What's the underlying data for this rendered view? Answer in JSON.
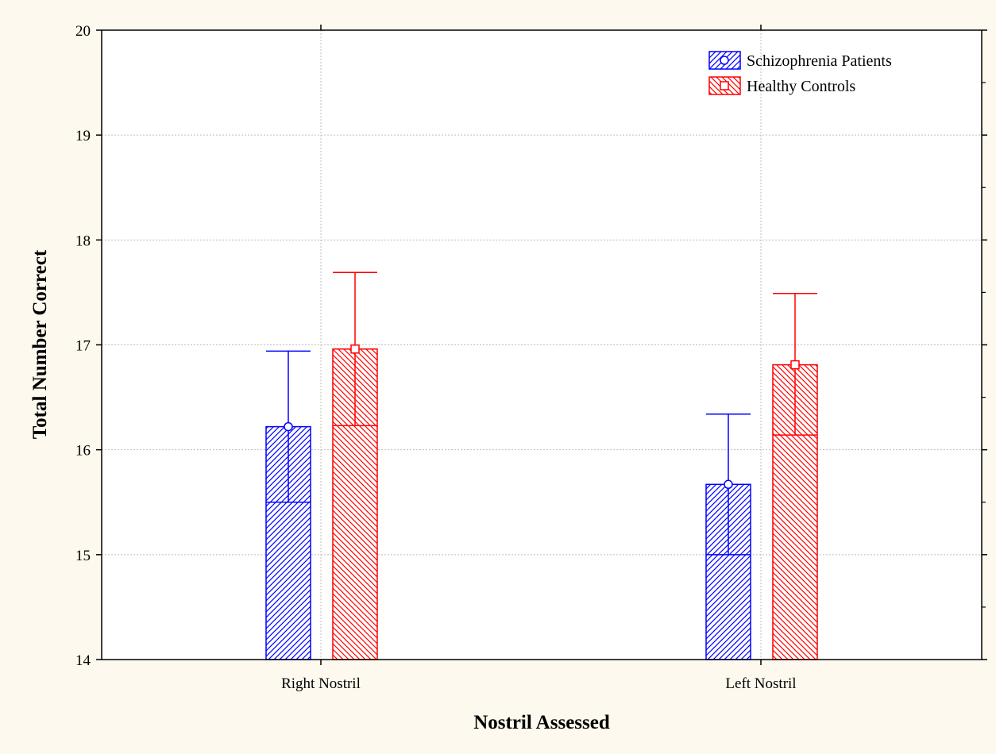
{
  "chart_data": {
    "type": "bar",
    "title": "",
    "xlabel": "Nostril Assessed",
    "ylabel": "Total Number Correct",
    "categories": [
      "Right Nostril",
      "Left Nostril"
    ],
    "ylim": [
      14,
      20
    ],
    "yticks": [
      "14",
      "15",
      "16",
      "17",
      "18",
      "19",
      "20"
    ],
    "grid": true,
    "legend_position": "top-right",
    "series": [
      {
        "name": "Schizophrenia Patients",
        "color": "#0000ff",
        "marker": "circle",
        "values": [
          16.22,
          15.67
        ],
        "error_low": [
          15.5,
          15.0
        ],
        "error_high": [
          16.94,
          16.34
        ]
      },
      {
        "name": "Healthy Controls",
        "color": "#ff0000",
        "marker": "square",
        "values": [
          16.96,
          16.81
        ],
        "error_low": [
          16.23,
          16.14
        ],
        "error_high": [
          17.69,
          17.49
        ]
      }
    ]
  }
}
